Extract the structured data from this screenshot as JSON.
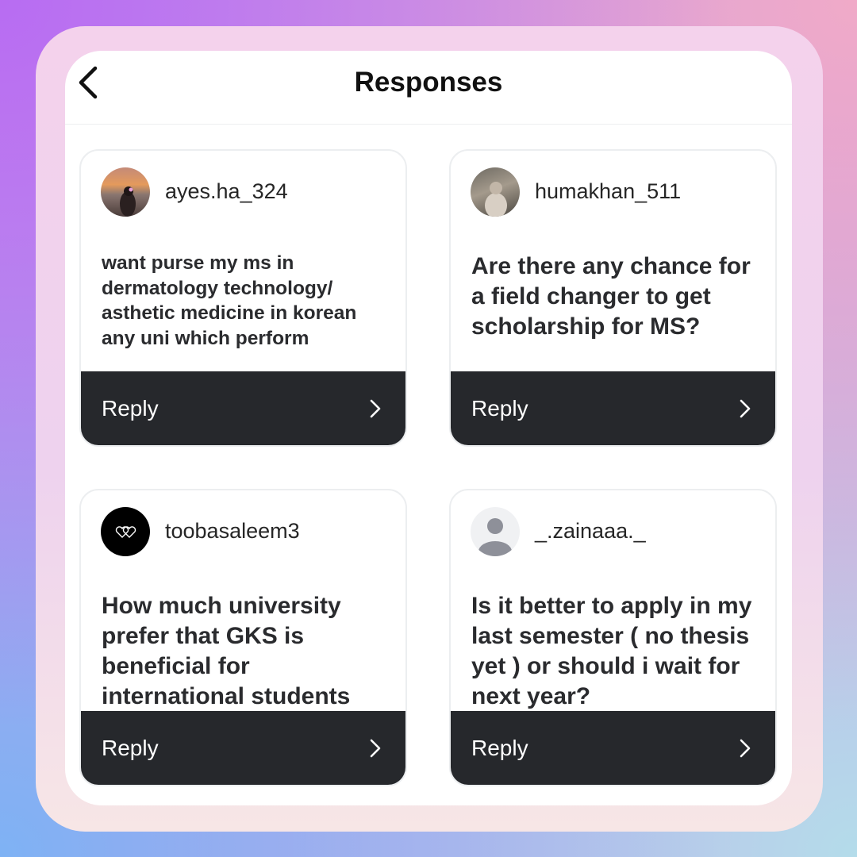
{
  "header": {
    "title": "Responses",
    "back_icon": "chevron-left-icon"
  },
  "reply_label": "Reply",
  "colors": {
    "reply_bar": "#26282c",
    "panel": "#ffffff"
  },
  "responses": [
    {
      "username": "ayes.ha_324",
      "avatar": "photo-sunset",
      "message": "want purse my ms in dermatology technology/ asthetic medicine in korean any uni which perform"
    },
    {
      "username": "humakhan_511",
      "avatar": "photo-person",
      "message": "Are there any chance for a field changer to get scholarship for MS?"
    },
    {
      "username": "toobasaleem3",
      "avatar": "hearts-icon-black",
      "message": "How much university prefer that GKS is beneficial for international students"
    },
    {
      "username": "_.zainaaa._",
      "avatar": "default-user-icon",
      "message": "Is it better to apply in my last semester ( no thesis yet ) or should i wait for next year?"
    }
  ]
}
